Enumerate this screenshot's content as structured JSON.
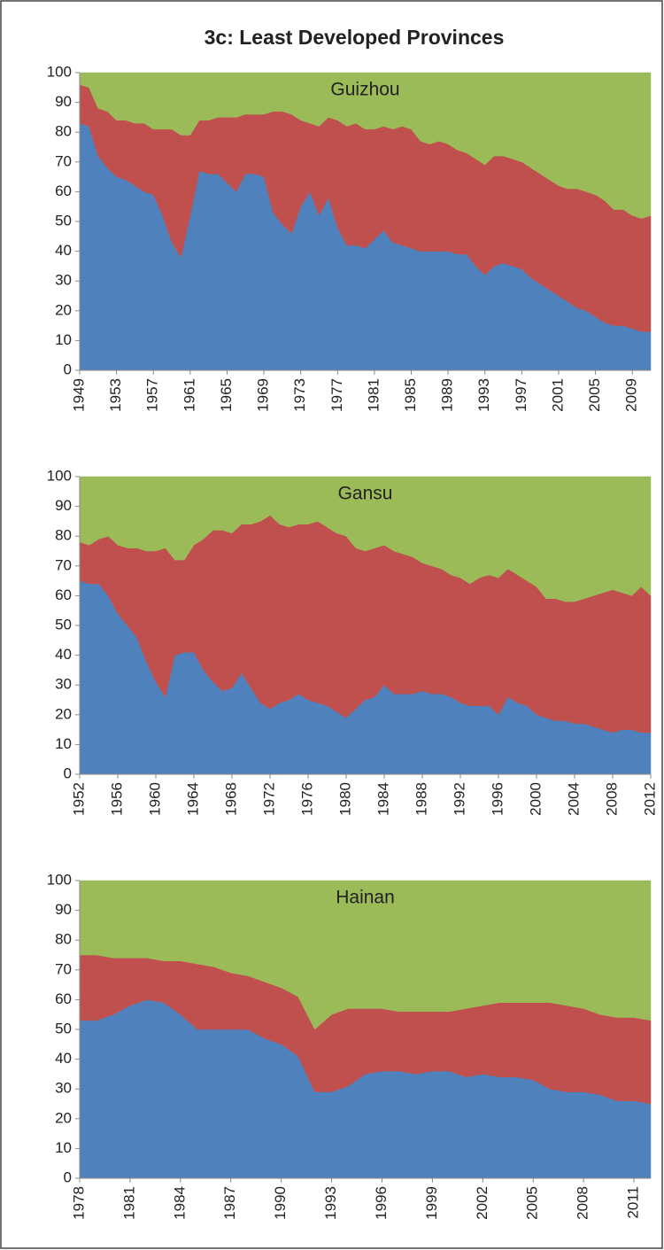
{
  "title": "3c: Least Developed Provinces",
  "chart_data": [
    {
      "type": "area",
      "title": "Guizhou",
      "x": [
        1949,
        1950,
        1951,
        1952,
        1953,
        1954,
        1955,
        1956,
        1957,
        1958,
        1959,
        1960,
        1961,
        1962,
        1963,
        1964,
        1965,
        1966,
        1967,
        1968,
        1969,
        1970,
        1971,
        1972,
        1973,
        1974,
        1975,
        1976,
        1977,
        1978,
        1979,
        1980,
        1981,
        1982,
        1983,
        1984,
        1985,
        1986,
        1987,
        1988,
        1989,
        1990,
        1991,
        1992,
        1993,
        1994,
        1995,
        1996,
        1997,
        1998,
        1999,
        2000,
        2001,
        2002,
        2003,
        2004,
        2005,
        2006,
        2007,
        2008,
        2009,
        2010,
        2011
      ],
      "series": [
        {
          "color": "#4f81bd",
          "values": [
            83,
            82,
            72,
            68,
            65,
            64,
            62,
            60,
            59,
            52,
            43,
            38,
            52,
            67,
            66,
            66,
            63,
            60,
            66,
            66,
            65,
            53,
            49,
            46,
            55,
            60,
            52,
            58,
            48,
            42,
            42,
            41,
            44,
            47,
            43,
            42,
            41,
            40,
            40,
            40,
            40,
            39,
            39,
            35,
            32,
            35,
            36,
            35,
            34,
            31,
            29,
            27,
            25,
            23,
            21,
            20,
            18,
            16,
            15,
            15,
            14,
            13,
            13
          ]
        },
        {
          "color": "#c0504d",
          "values": [
            13,
            13,
            16,
            19,
            19,
            20,
            21,
            23,
            22,
            29,
            38,
            41,
            27,
            17,
            18,
            19,
            22,
            25,
            20,
            20,
            21,
            34,
            38,
            40,
            29,
            23,
            30,
            27,
            36,
            40,
            41,
            40,
            37,
            35,
            38,
            40,
            40,
            37,
            36,
            37,
            36,
            35,
            34,
            36,
            37,
            37,
            36,
            36,
            36,
            37,
            37,
            37,
            37,
            38,
            40,
            40,
            41,
            41,
            39,
            39,
            38,
            38,
            39
          ]
        },
        {
          "color": "#9bbb59",
          "values": [
            4,
            5,
            12,
            13,
            16,
            16,
            17,
            17,
            19,
            19,
            19,
            21,
            21,
            16,
            16,
            15,
            15,
            15,
            14,
            14,
            14,
            13,
            13,
            14,
            16,
            17,
            18,
            15,
            16,
            18,
            17,
            19,
            19,
            18,
            19,
            18,
            19,
            23,
            24,
            23,
            24,
            26,
            27,
            29,
            31,
            28,
            28,
            29,
            30,
            32,
            34,
            36,
            38,
            39,
            39,
            40,
            41,
            43,
            46,
            46,
            48,
            49,
            48
          ]
        }
      ],
      "xlim": [
        1949,
        2011
      ],
      "xticks": [
        1949,
        1953,
        1957,
        1961,
        1965,
        1969,
        1973,
        1977,
        1981,
        1985,
        1989,
        1993,
        1997,
        2001,
        2005,
        2009
      ],
      "ylim": [
        0,
        100
      ],
      "yticks": [
        0,
        10,
        20,
        30,
        40,
        50,
        60,
        70,
        80,
        90,
        100
      ]
    },
    {
      "type": "area",
      "title": "Gansu",
      "x": [
        1952,
        1953,
        1954,
        1955,
        1956,
        1957,
        1958,
        1959,
        1960,
        1961,
        1962,
        1963,
        1964,
        1965,
        1966,
        1967,
        1968,
        1969,
        1970,
        1971,
        1972,
        1973,
        1974,
        1975,
        1976,
        1977,
        1978,
        1979,
        1980,
        1981,
        1982,
        1983,
        1984,
        1985,
        1986,
        1987,
        1988,
        1989,
        1990,
        1991,
        1992,
        1993,
        1994,
        1995,
        1996,
        1997,
        1998,
        1999,
        2000,
        2001,
        2002,
        2003,
        2004,
        2005,
        2006,
        2007,
        2008,
        2009,
        2010,
        2011,
        2012
      ],
      "series": [
        {
          "color": "#4f81bd",
          "values": [
            65,
            64,
            64,
            60,
            54,
            50,
            46,
            38,
            31,
            26,
            40,
            41,
            41,
            35,
            31,
            28,
            29,
            34,
            29,
            24,
            22,
            24,
            25,
            27,
            25,
            24,
            23,
            21,
            19,
            22,
            25,
            26,
            30,
            27,
            27,
            27,
            28,
            27,
            27,
            26,
            24,
            23,
            23,
            23,
            20,
            26,
            24,
            23,
            20,
            19,
            18,
            18,
            17,
            17,
            16,
            15,
            14,
            15,
            15,
            14,
            14
          ]
        },
        {
          "color": "#c0504d",
          "values": [
            13,
            13,
            15,
            20,
            23,
            26,
            30,
            37,
            44,
            50,
            32,
            31,
            36,
            44,
            51,
            54,
            52,
            50,
            55,
            61,
            65,
            60,
            58,
            57,
            59,
            61,
            60,
            60,
            61,
            54,
            50,
            50,
            47,
            48,
            47,
            46,
            43,
            43,
            42,
            41,
            42,
            41,
            43,
            44,
            46,
            43,
            43,
            42,
            43,
            40,
            41,
            40,
            41,
            42,
            44,
            46,
            48,
            46,
            45,
            49,
            46
          ]
        },
        {
          "color": "#9bbb59",
          "values": [
            22,
            23,
            21,
            20,
            23,
            24,
            24,
            25,
            25,
            24,
            28,
            28,
            23,
            21,
            18,
            18,
            19,
            16,
            16,
            15,
            13,
            16,
            17,
            16,
            16,
            15,
            17,
            19,
            20,
            24,
            25,
            24,
            23,
            25,
            26,
            27,
            29,
            30,
            31,
            33,
            34,
            36,
            34,
            33,
            34,
            31,
            33,
            35,
            37,
            41,
            41,
            42,
            42,
            41,
            40,
            39,
            38,
            39,
            40,
            37,
            40
          ]
        }
      ],
      "xlim": [
        1952,
        2012
      ],
      "xticks": [
        1952,
        1956,
        1960,
        1964,
        1968,
        1972,
        1976,
        1980,
        1984,
        1988,
        1992,
        1996,
        2000,
        2004,
        2008,
        2012
      ],
      "ylim": [
        0,
        100
      ],
      "yticks": [
        0,
        10,
        20,
        30,
        40,
        50,
        60,
        70,
        80,
        90,
        100
      ]
    },
    {
      "type": "area",
      "title": "Hainan",
      "x": [
        1978,
        1979,
        1980,
        1981,
        1982,
        1983,
        1984,
        1985,
        1986,
        1987,
        1988,
        1989,
        1990,
        1991,
        1992,
        1993,
        1994,
        1995,
        1996,
        1997,
        1998,
        1999,
        2000,
        2001,
        2002,
        2003,
        2004,
        2005,
        2006,
        2007,
        2008,
        2009,
        2010,
        2011,
        2012
      ],
      "series": [
        {
          "color": "#4f81bd",
          "values": [
            53,
            53,
            55,
            58,
            60,
            59,
            55,
            50,
            50,
            50,
            50,
            47,
            45,
            41,
            29,
            29,
            31,
            35,
            36,
            36,
            35,
            36,
            36,
            34,
            35,
            34,
            34,
            33,
            30,
            29,
            29,
            28,
            26,
            26,
            25
          ]
        },
        {
          "color": "#c0504d",
          "values": [
            22,
            22,
            19,
            16,
            14,
            14,
            18,
            22,
            21,
            19,
            18,
            19,
            19,
            20,
            21,
            26,
            26,
            22,
            21,
            20,
            21,
            20,
            20,
            23,
            23,
            25,
            25,
            26,
            29,
            29,
            28,
            27,
            28,
            28,
            28
          ]
        },
        {
          "color": "#9bbb59",
          "values": [
            25,
            25,
            26,
            26,
            26,
            27,
            27,
            28,
            29,
            31,
            32,
            34,
            36,
            39,
            50,
            45,
            43,
            43,
            43,
            44,
            44,
            44,
            44,
            43,
            42,
            41,
            41,
            41,
            41,
            42,
            43,
            45,
            46,
            46,
            47
          ]
        }
      ],
      "xlim": [
        1978,
        2012
      ],
      "xticks": [
        1978,
        1981,
        1984,
        1987,
        1990,
        1993,
        1996,
        1999,
        2002,
        2005,
        2008,
        2011
      ],
      "ylim": [
        0,
        100
      ],
      "yticks": [
        0,
        10,
        20,
        30,
        40,
        50,
        60,
        70,
        80,
        90,
        100
      ]
    }
  ]
}
